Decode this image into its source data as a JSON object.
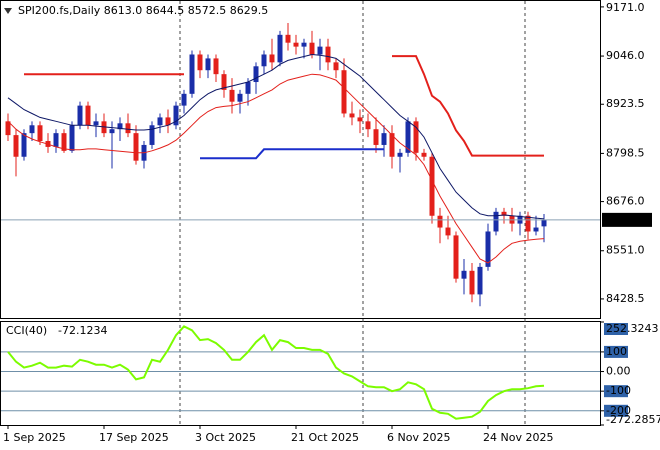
{
  "chart_data": [
    {
      "type": "candlestick",
      "title": "SPI200.fs,Daily  8613.0 8644.5 8572.5 8629.5",
      "categories": [
        "1 Sep 2025",
        null,
        null,
        null,
        null,
        null,
        null,
        null,
        null,
        null,
        null,
        null,
        "17 Sep 2025",
        null,
        null,
        null,
        null,
        null,
        null,
        null,
        null,
        null,
        null,
        null,
        "3 Oct 2025",
        null,
        null,
        null,
        null,
        null,
        null,
        null,
        null,
        null,
        null,
        null,
        "21 Oct 2025",
        null,
        null,
        null,
        null,
        null,
        null,
        null,
        null,
        null,
        null,
        null,
        "6 Nov 2025",
        null,
        null,
        null,
        null,
        null,
        null,
        null,
        null,
        null,
        null,
        null,
        "24 Nov 2025",
        null,
        null,
        null,
        null,
        null,
        null,
        null
      ],
      "open": [
        8880,
        8845,
        8790,
        8850,
        8870,
        8830,
        8815,
        8850,
        8805,
        8870,
        8920,
        8870,
        8880,
        8850,
        8860,
        8875,
        8850,
        8780,
        8820,
        8870,
        8890,
        8870,
        8920,
        8950,
        9050,
        9010,
        9040,
        9000,
        8960,
        8930,
        8950,
        8980,
        9020,
        9050,
        9030,
        9100,
        9080,
        9070,
        9080,
        9050,
        9070,
        9030,
        9010,
        8900,
        8890,
        8880,
        8860,
        8820,
        8850,
        8790,
        8800,
        8880,
        8800,
        8790,
        8640,
        8610,
        8590,
        8480,
        8500,
        8440,
        8510,
        8600,
        8650,
        8640,
        8620,
        8640,
        8600,
        8613
      ],
      "high": [
        8900,
        8860,
        8860,
        8880,
        8880,
        8850,
        8860,
        8860,
        8880,
        8930,
        8930,
        8900,
        8900,
        8880,
        8890,
        8900,
        8870,
        8830,
        8880,
        8900,
        8910,
        8930,
        8960,
        9060,
        9060,
        9050,
        9050,
        9010,
        8990,
        8960,
        8990,
        9030,
        9060,
        9090,
        9110,
        9130,
        9100,
        9090,
        9110,
        9090,
        9090,
        9040,
        9040,
        8930,
        8910,
        8900,
        8890,
        8870,
        8870,
        8810,
        8890,
        8890,
        8810,
        8800,
        8660,
        8640,
        8600,
        8530,
        8520,
        8520,
        8620,
        8660,
        8660,
        8660,
        8650,
        8650,
        8640,
        8644.5
      ],
      "low": [
        8830,
        8740,
        8780,
        8830,
        8820,
        8800,
        8800,
        8800,
        8800,
        8860,
        8860,
        8840,
        8840,
        8760,
        8830,
        8840,
        8770,
        8760,
        8810,
        8850,
        8850,
        8860,
        8900,
        8940,
        8990,
        8990,
        8980,
        8940,
        8900,
        8900,
        8920,
        8950,
        9000,
        9010,
        9020,
        9060,
        9050,
        9040,
        9040,
        9010,
        9010,
        8990,
        8890,
        8870,
        8850,
        8840,
        8800,
        8790,
        8760,
        8750,
        8790,
        8780,
        8780,
        8620,
        8570,
        8580,
        8470,
        8440,
        8420,
        8410,
        8500,
        8590,
        8620,
        8600,
        8590,
        8580,
        8590,
        8572.5
      ],
      "close": [
        8845,
        8790,
        8850,
        8870,
        8830,
        8815,
        8850,
        8805,
        8870,
        8920,
        8870,
        8880,
        8850,
        8860,
        8875,
        8850,
        8780,
        8820,
        8870,
        8890,
        8870,
        8920,
        8950,
        9050,
        9010,
        9040,
        9000,
        8960,
        8930,
        8950,
        8980,
        9020,
        9050,
        9030,
        9100,
        9080,
        9070,
        9080,
        9050,
        9070,
        9030,
        9010,
        8900,
        8890,
        8880,
        8860,
        8820,
        8850,
        8790,
        8800,
        8880,
        8800,
        8790,
        8640,
        8610,
        8590,
        8480,
        8500,
        8440,
        8510,
        8600,
        8650,
        8640,
        8620,
        8640,
        8600,
        8610,
        8629.5
      ],
      "up_color": "#1a2ea8",
      "down_color": "#e3201b",
      "overlays": [
        {
          "color": "#0d1766",
          "values": [
            8940,
            8925,
            8910,
            8900,
            8890,
            8885,
            8880,
            8875,
            8870,
            8870,
            8870,
            8868,
            8866,
            8864,
            8862,
            8860,
            8858,
            8858,
            8860,
            8865,
            8870,
            8880,
            8895,
            8915,
            8935,
            8950,
            8960,
            8965,
            8970,
            8975,
            8980,
            8990,
            9000,
            9010,
            9025,
            9035,
            9040,
            9045,
            9050,
            9048,
            9045,
            9040,
            9025,
            9010,
            8995,
            8975,
            8955,
            8935,
            8915,
            8895,
            8880,
            8865,
            8840,
            8800,
            8760,
            8730,
            8700,
            8680,
            8660,
            8645,
            8640,
            8640,
            8642,
            8640,
            8638,
            8636,
            8634,
            8632
          ]
        },
        {
          "color": "#e3201b",
          "values": [
            8880,
            8860,
            8845,
            8835,
            8828,
            8822,
            8815,
            8810,
            8808,
            8808,
            8810,
            8810,
            8808,
            8806,
            8804,
            8802,
            8800,
            8800,
            8805,
            8812,
            8820,
            8832,
            8850,
            8870,
            8890,
            8905,
            8915,
            8918,
            8920,
            8925,
            8930,
            8940,
            8950,
            8960,
            8975,
            8985,
            8990,
            8995,
            9000,
            8998,
            8992,
            8985,
            8965,
            8945,
            8925,
            8905,
            8885,
            8865,
            8845,
            8825,
            8810,
            8795,
            8770,
            8730,
            8690,
            8655,
            8620,
            8590,
            8560,
            8530,
            8520,
            8535,
            8555,
            8570,
            8575,
            8578,
            8580,
            8582
          ]
        },
        {
          "color": "#e3201b",
          "width": 2,
          "values": [
            null,
            null,
            9000,
            9000,
            9000,
            9000,
            9000,
            9000,
            9000,
            9000,
            9000,
            9000,
            9000,
            9000,
            9000,
            9000,
            9000,
            9000,
            9000,
            9000,
            9000,
            9000,
            9000,
            null,
            null,
            null,
            null,
            null,
            null,
            null,
            null,
            null,
            null,
            null,
            null,
            null,
            null,
            null,
            null,
            null,
            null,
            null,
            null,
            null,
            null,
            null,
            null,
            null,
            9046,
            9046,
            9046,
            9046,
            9000,
            8945,
            8930,
            8900,
            8857,
            8830,
            8793,
            8793,
            8793,
            8793,
            8793,
            8793,
            8793,
            8793,
            8793,
            8793
          ]
        },
        {
          "color": "#1a2ecc",
          "width": 2,
          "values": [
            null,
            null,
            null,
            null,
            null,
            null,
            null,
            null,
            null,
            null,
            null,
            null,
            null,
            null,
            null,
            null,
            null,
            null,
            null,
            null,
            null,
            null,
            null,
            null,
            8786,
            8786,
            8786,
            8786,
            8786,
            8786,
            8786,
            8786,
            8809,
            8809,
            8809,
            8809,
            8809,
            8809,
            8809,
            8809,
            8809,
            8809,
            8809,
            8809,
            8809,
            8809,
            8809,
            8809,
            null,
            null,
            null,
            null,
            null,
            null,
            null,
            null,
            null,
            null,
            null,
            null,
            null,
            null,
            null,
            null,
            null,
            null,
            null,
            null
          ]
        }
      ],
      "ylim": [
        8380,
        9186
      ],
      "yticks": [
        {
          "value": 9171,
          "label": "9171.0"
        },
        {
          "value": 9046,
          "label": "9046.0"
        },
        8923.5,
        8798.5,
        {
          "value": 8676,
          "label": "8676.0"
        },
        {
          "value": 8551,
          "label": "8551.0"
        },
        8428.5
      ]
    },
    {
      "type": "line",
      "title": "CCI(40)",
      "color": "#7cfc00",
      "values": [
        100,
        50,
        20,
        30,
        45,
        20,
        20,
        30,
        25,
        60,
        50,
        35,
        35,
        20,
        35,
        10,
        -40,
        -30,
        60,
        50,
        110,
        185,
        230,
        210,
        160,
        165,
        145,
        110,
        60,
        60,
        100,
        150,
        185,
        110,
        160,
        150,
        120,
        120,
        110,
        110,
        90,
        20,
        -10,
        -25,
        -50,
        -75,
        -80,
        -80,
        -100,
        -90,
        -55,
        -65,
        -90,
        -190,
        -210,
        -215,
        -240,
        -235,
        -230,
        -205,
        -150,
        -120,
        -100,
        -90,
        -90,
        -85,
        -75,
        -72.1234
      ],
      "ylim": [
        -272.2857,
        252.3243
      ],
      "yticks": [
        252.3243,
        100,
        {
          "value": 0,
          "label": "0.00"
        },
        -100,
        -200,
        -272.2857
      ]
    }
  ]
}
